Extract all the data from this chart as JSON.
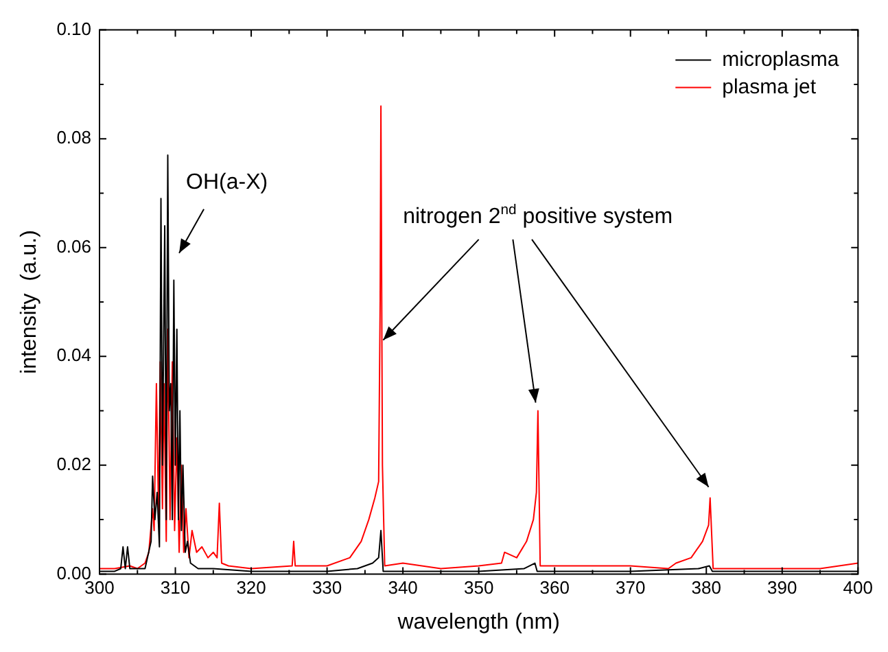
{
  "chart_data": {
    "type": "line",
    "xlabel": "wavelength (nm)",
    "ylabel": "intensity  (a.u.)",
    "annotations": [
      "OH(a-X)",
      {
        "text": "nitrogen 2$^{nd}$ positive system",
        "x": 337.4,
        "y": 0.043
      }
    ],
    "series": [
      {
        "name": "microplasma",
        "color": "#000000",
        "x": [
          300,
          302,
          302.8,
          303.1,
          303.4,
          303.7,
          304,
          306,
          306.8,
          307,
          307.3,
          307.6,
          307.9,
          308.1,
          308.3,
          308.6,
          308.8,
          309,
          309.2,
          309.4,
          309.6,
          309.8,
          310,
          310.2,
          310.4,
          310.6,
          310.8,
          311,
          311.3,
          311.6,
          312,
          313,
          315,
          320,
          330,
          334,
          336,
          336.8,
          337.1,
          337.4,
          340,
          350,
          356,
          357.4,
          357.7,
          358,
          370,
          379,
          380.4,
          380.8,
          390,
          400
        ],
        "values": [
          0.0005,
          0.0005,
          0.001,
          0.005,
          0.001,
          0.005,
          0.001,
          0.001,
          0.006,
          0.018,
          0.01,
          0.015,
          0.005,
          0.069,
          0.02,
          0.064,
          0.01,
          0.077,
          0.03,
          0.035,
          0.01,
          0.054,
          0.02,
          0.045,
          0.01,
          0.03,
          0.008,
          0.02,
          0.004,
          0.006,
          0.002,
          0.001,
          0.001,
          0.0005,
          0.0005,
          0.001,
          0.002,
          0.003,
          0.008,
          0.0005,
          0.0005,
          0.0005,
          0.001,
          0.002,
          0.0005,
          0.0005,
          0.0005,
          0.001,
          0.0015,
          0.0005,
          0.0005,
          0.0005
        ]
      },
      {
        "name": "plasma jet",
        "color": "#ff0000",
        "x": [
          300,
          302,
          304,
          305,
          306,
          306.5,
          307,
          307.2,
          307.5,
          307.8,
          308,
          308.3,
          308.5,
          308.8,
          309,
          309.3,
          309.6,
          309.9,
          310.2,
          310.5,
          310.8,
          311.1,
          311.4,
          311.8,
          312.2,
          312.8,
          313.5,
          314.3,
          315,
          315.5,
          315.8,
          316.1,
          317,
          320,
          325.4,
          325.6,
          325.8,
          330,
          333,
          334.5,
          335.5,
          336.3,
          336.8,
          337,
          337.1,
          337.3,
          337.6,
          340,
          345,
          350,
          353,
          353.4,
          355,
          356.3,
          357.2,
          357.6,
          357.8,
          358.1,
          360,
          370,
          375,
          376,
          378,
          379.5,
          380.3,
          380.5,
          380.9,
          385,
          390,
          395,
          400
        ],
        "values": [
          0.001,
          0.001,
          0.0015,
          0.001,
          0.002,
          0.004,
          0.012,
          0.008,
          0.035,
          0.01,
          0.039,
          0.012,
          0.035,
          0.006,
          0.045,
          0.01,
          0.039,
          0.008,
          0.025,
          0.004,
          0.02,
          0.004,
          0.012,
          0.003,
          0.008,
          0.004,
          0.005,
          0.003,
          0.004,
          0.003,
          0.013,
          0.002,
          0.0015,
          0.001,
          0.0015,
          0.006,
          0.0015,
          0.0015,
          0.003,
          0.006,
          0.01,
          0.014,
          0.017,
          0.05,
          0.086,
          0.02,
          0.0015,
          0.002,
          0.001,
          0.0015,
          0.002,
          0.004,
          0.003,
          0.006,
          0.01,
          0.015,
          0.03,
          0.0015,
          0.0015,
          0.0015,
          0.001,
          0.002,
          0.003,
          0.006,
          0.009,
          0.014,
          0.001,
          0.001,
          0.001,
          0.001,
          0.002
        ]
      }
    ],
    "xlim": [
      300,
      400
    ],
    "xticks": [
      300,
      310,
      320,
      330,
      340,
      350,
      360,
      370,
      380,
      390,
      400
    ],
    "ylim": [
      0,
      0.1
    ],
    "yticks": [
      {
        "value": 0,
        "label": "0.00"
      },
      {
        "value": 0.02,
        "label": "0.02"
      },
      {
        "value": 0.04,
        "label": "0.04"
      },
      {
        "value": 0.06,
        "label": "0.06"
      },
      {
        "value": 0.08,
        "label": "0.08"
      },
      {
        "value": 0.1,
        "label": "0.10"
      }
    ],
    "legend": "top right",
    "grid": false,
    "marker": "none",
    "line_style": "solid"
  }
}
